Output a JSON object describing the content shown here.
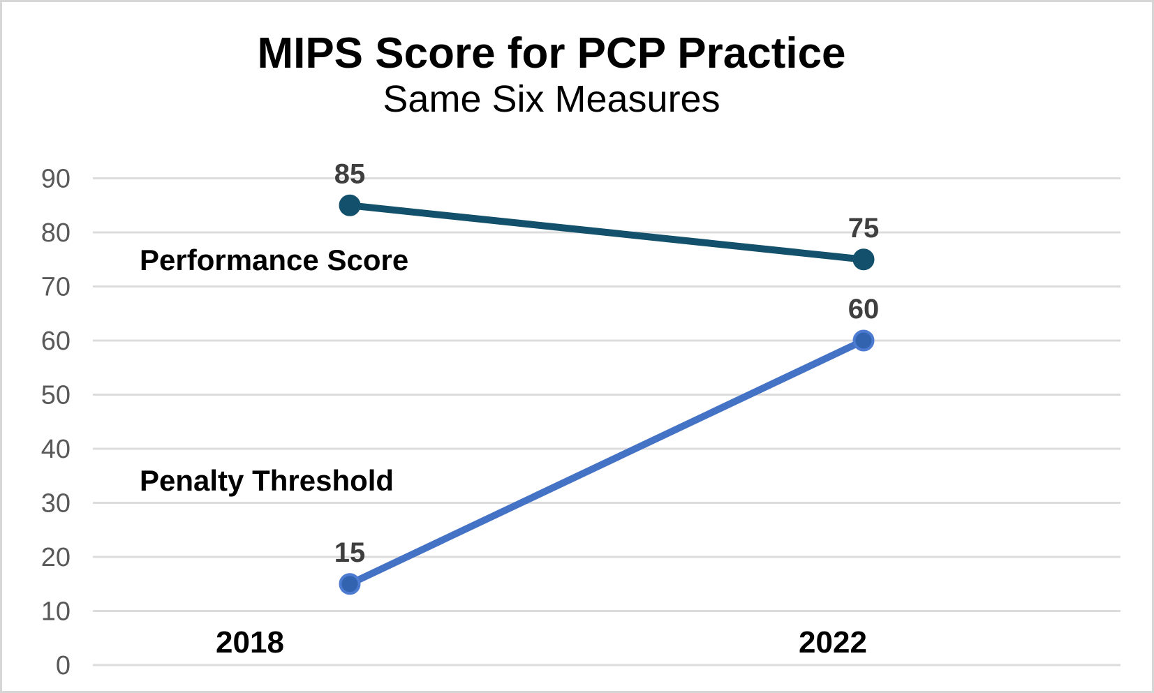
{
  "page": {
    "background": "#ffffff",
    "border_color": "#d6d6d6"
  },
  "chart_data": {
    "type": "line",
    "title": "MIPS Score for PCP Practice",
    "subtitle": "Same Six Measures",
    "categories": [
      "2018",
      "2022"
    ],
    "series": [
      {
        "name": "Performance Score",
        "values": [
          85,
          75
        ],
        "data_labels": [
          "85",
          "75"
        ],
        "color": "#12506B",
        "marker_fill": "#12506B",
        "marker_stroke": "#12506B"
      },
      {
        "name": "Penalty Threshold",
        "values": [
          15,
          60
        ],
        "data_labels": [
          "15",
          "60"
        ],
        "color": "#4472C4",
        "marker_fill": "#3163AF",
        "marker_stroke": "#4C7BD1"
      }
    ],
    "xlabel": "",
    "ylabel": "",
    "ylim": [
      0,
      90
    ],
    "yticks": [
      0,
      10,
      20,
      30,
      40,
      50,
      60,
      70,
      80,
      90
    ],
    "grid": true,
    "gridline_color": "#dcdcdc",
    "tick_label_color": "#595959",
    "data_label_color": "#3f3f3f",
    "category_label_color": "#000000",
    "legend": "inline-series-labels"
  }
}
